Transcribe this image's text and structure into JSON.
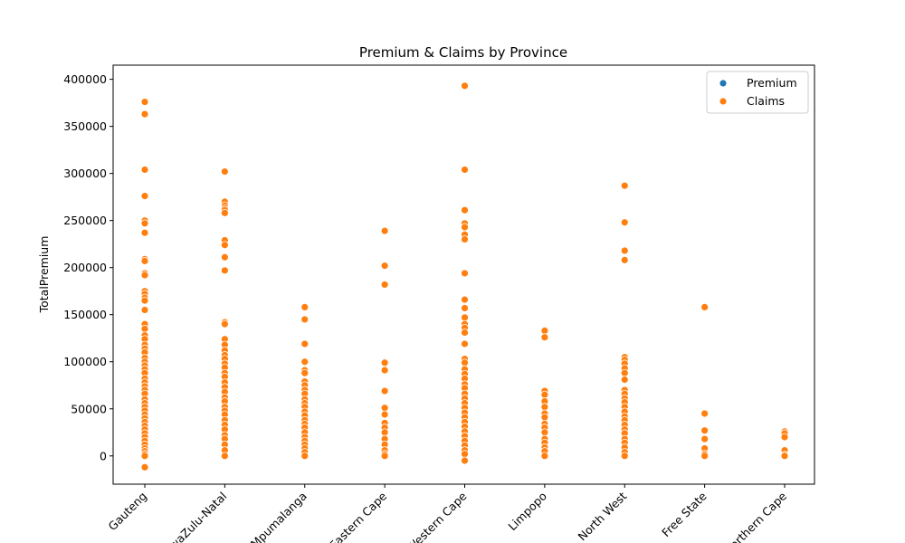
{
  "chart_data": {
    "type": "scatter",
    "title": "Premium & Claims by Province",
    "xlabel": "",
    "ylabel": "TotalPremium",
    "categories": [
      "Gauteng",
      "KwaZulu-Natal",
      "Mpumalanga",
      "Eastern Cape",
      "Western Cape",
      "Limpopo",
      "North West",
      "Free State",
      "Northern Cape"
    ],
    "ylim": [
      -30000,
      415000
    ],
    "yticks": [
      0,
      50000,
      100000,
      150000,
      200000,
      250000,
      300000,
      350000,
      400000
    ],
    "grid": false,
    "legend_position": "top-right",
    "series": [
      {
        "name": "Premium",
        "color": "#1f77b4",
        "points": [
          [
            "Gauteng",
            0
          ],
          [
            "Gauteng",
            500
          ],
          [
            "Gauteng",
            1200
          ],
          [
            "Gauteng",
            2500
          ],
          [
            "KwaZulu-Natal",
            0
          ],
          [
            "KwaZulu-Natal",
            800
          ],
          [
            "KwaZulu-Natal",
            1500
          ],
          [
            "Mpumalanga",
            0
          ],
          [
            "Mpumalanga",
            600
          ],
          [
            "Eastern Cape",
            0
          ],
          [
            "Eastern Cape",
            400
          ],
          [
            "Western Cape",
            0
          ],
          [
            "Western Cape",
            700
          ],
          [
            "Western Cape",
            1800
          ],
          [
            "Limpopo",
            0
          ],
          [
            "Limpopo",
            500
          ],
          [
            "North West",
            0
          ],
          [
            "North West",
            900
          ],
          [
            "Free State",
            0
          ],
          [
            "Free State",
            300
          ],
          [
            "Northern Cape",
            0
          ],
          [
            "Northern Cape",
            200
          ]
        ]
      },
      {
        "name": "Claims",
        "color": "#ff7f0e",
        "points": [
          [
            "Gauteng",
            376000
          ],
          [
            "Gauteng",
            363000
          ],
          [
            "Gauteng",
            304000
          ],
          [
            "Gauteng",
            276000
          ],
          [
            "Gauteng",
            250000
          ],
          [
            "Gauteng",
            247000
          ],
          [
            "Gauteng",
            237000
          ],
          [
            "Gauteng",
            209000
          ],
          [
            "Gauteng",
            207000
          ],
          [
            "Gauteng",
            194000
          ],
          [
            "Gauteng",
            192000
          ],
          [
            "Gauteng",
            175000
          ],
          [
            "Gauteng",
            172000
          ],
          [
            "Gauteng",
            168000
          ],
          [
            "Gauteng",
            165000
          ],
          [
            "Gauteng",
            155000
          ],
          [
            "Gauteng",
            140000
          ],
          [
            "Gauteng",
            135000
          ],
          [
            "Gauteng",
            128000
          ],
          [
            "Gauteng",
            124000
          ],
          [
            "Gauteng",
            118000
          ],
          [
            "Gauteng",
            114000
          ],
          [
            "Gauteng",
            110000
          ],
          [
            "Gauteng",
            104000
          ],
          [
            "Gauteng",
            100000
          ],
          [
            "Gauteng",
            96000
          ],
          [
            "Gauteng",
            92000
          ],
          [
            "Gauteng",
            88000
          ],
          [
            "Gauteng",
            82000
          ],
          [
            "Gauteng",
            78000
          ],
          [
            "Gauteng",
            74000
          ],
          [
            "Gauteng",
            70000
          ],
          [
            "Gauteng",
            66000
          ],
          [
            "Gauteng",
            60000
          ],
          [
            "Gauteng",
            56000
          ],
          [
            "Gauteng",
            52000
          ],
          [
            "Gauteng",
            48000
          ],
          [
            "Gauteng",
            44000
          ],
          [
            "Gauteng",
            40000
          ],
          [
            "Gauteng",
            36000
          ],
          [
            "Gauteng",
            32000
          ],
          [
            "Gauteng",
            28000
          ],
          [
            "Gauteng",
            24000
          ],
          [
            "Gauteng",
            20000
          ],
          [
            "Gauteng",
            16000
          ],
          [
            "Gauteng",
            12000
          ],
          [
            "Gauteng",
            8000
          ],
          [
            "Gauteng",
            5000
          ],
          [
            "Gauteng",
            2000
          ],
          [
            "Gauteng",
            0
          ],
          [
            "Gauteng",
            -12000
          ],
          [
            "KwaZulu-Natal",
            302000
          ],
          [
            "KwaZulu-Natal",
            270000
          ],
          [
            "KwaZulu-Natal",
            266000
          ],
          [
            "KwaZulu-Natal",
            263000
          ],
          [
            "KwaZulu-Natal",
            261000
          ],
          [
            "KwaZulu-Natal",
            258000
          ],
          [
            "KwaZulu-Natal",
            229000
          ],
          [
            "KwaZulu-Natal",
            224000
          ],
          [
            "KwaZulu-Natal",
            211000
          ],
          [
            "KwaZulu-Natal",
            197000
          ],
          [
            "KwaZulu-Natal",
            142000
          ],
          [
            "KwaZulu-Natal",
            140000
          ],
          [
            "KwaZulu-Natal",
            124000
          ],
          [
            "KwaZulu-Natal",
            118000
          ],
          [
            "KwaZulu-Natal",
            112000
          ],
          [
            "KwaZulu-Natal",
            107000
          ],
          [
            "KwaZulu-Natal",
            103000
          ],
          [
            "KwaZulu-Natal",
            98000
          ],
          [
            "KwaZulu-Natal",
            94000
          ],
          [
            "KwaZulu-Natal",
            88000
          ],
          [
            "KwaZulu-Natal",
            84000
          ],
          [
            "KwaZulu-Natal",
            78000
          ],
          [
            "KwaZulu-Natal",
            73000
          ],
          [
            "KwaZulu-Natal",
            68000
          ],
          [
            "KwaZulu-Natal",
            62000
          ],
          [
            "KwaZulu-Natal",
            58000
          ],
          [
            "KwaZulu-Natal",
            52000
          ],
          [
            "KwaZulu-Natal",
            48000
          ],
          [
            "KwaZulu-Natal",
            44000
          ],
          [
            "KwaZulu-Natal",
            38000
          ],
          [
            "KwaZulu-Natal",
            33000
          ],
          [
            "KwaZulu-Natal",
            28000
          ],
          [
            "KwaZulu-Natal",
            22000
          ],
          [
            "KwaZulu-Natal",
            18000
          ],
          [
            "KwaZulu-Natal",
            12000
          ],
          [
            "KwaZulu-Natal",
            6000
          ],
          [
            "KwaZulu-Natal",
            0
          ],
          [
            "Mpumalanga",
            158000
          ],
          [
            "Mpumalanga",
            145000
          ],
          [
            "Mpumalanga",
            119000
          ],
          [
            "Mpumalanga",
            100000
          ],
          [
            "Mpumalanga",
            91000
          ],
          [
            "Mpumalanga",
            88000
          ],
          [
            "Mpumalanga",
            79000
          ],
          [
            "Mpumalanga",
            75000
          ],
          [
            "Mpumalanga",
            70000
          ],
          [
            "Mpumalanga",
            66000
          ],
          [
            "Mpumalanga",
            60000
          ],
          [
            "Mpumalanga",
            56000
          ],
          [
            "Mpumalanga",
            52000
          ],
          [
            "Mpumalanga",
            47000
          ],
          [
            "Mpumalanga",
            43000
          ],
          [
            "Mpumalanga",
            38000
          ],
          [
            "Mpumalanga",
            34000
          ],
          [
            "Mpumalanga",
            30000
          ],
          [
            "Mpumalanga",
            25000
          ],
          [
            "Mpumalanga",
            20000
          ],
          [
            "Mpumalanga",
            16000
          ],
          [
            "Mpumalanga",
            12000
          ],
          [
            "Mpumalanga",
            8000
          ],
          [
            "Mpumalanga",
            4000
          ],
          [
            "Mpumalanga",
            0
          ],
          [
            "Eastern Cape",
            239000
          ],
          [
            "Eastern Cape",
            202000
          ],
          [
            "Eastern Cape",
            182000
          ],
          [
            "Eastern Cape",
            99000
          ],
          [
            "Eastern Cape",
            91000
          ],
          [
            "Eastern Cape",
            69000
          ],
          [
            "Eastern Cape",
            51000
          ],
          [
            "Eastern Cape",
            44000
          ],
          [
            "Eastern Cape",
            35000
          ],
          [
            "Eastern Cape",
            30000
          ],
          [
            "Eastern Cape",
            25000
          ],
          [
            "Eastern Cape",
            18000
          ],
          [
            "Eastern Cape",
            12000
          ],
          [
            "Eastern Cape",
            6000
          ],
          [
            "Eastern Cape",
            2000
          ],
          [
            "Eastern Cape",
            0
          ],
          [
            "Western Cape",
            393000
          ],
          [
            "Western Cape",
            304000
          ],
          [
            "Western Cape",
            261000
          ],
          [
            "Western Cape",
            247000
          ],
          [
            "Western Cape",
            243000
          ],
          [
            "Western Cape",
            235000
          ],
          [
            "Western Cape",
            230000
          ],
          [
            "Western Cape",
            194000
          ],
          [
            "Western Cape",
            166000
          ],
          [
            "Western Cape",
            157000
          ],
          [
            "Western Cape",
            147000
          ],
          [
            "Western Cape",
            140000
          ],
          [
            "Western Cape",
            136000
          ],
          [
            "Western Cape",
            131000
          ],
          [
            "Western Cape",
            119000
          ],
          [
            "Western Cape",
            103000
          ],
          [
            "Western Cape",
            99000
          ],
          [
            "Western Cape",
            92000
          ],
          [
            "Western Cape",
            87000
          ],
          [
            "Western Cape",
            82000
          ],
          [
            "Western Cape",
            76000
          ],
          [
            "Western Cape",
            72000
          ],
          [
            "Western Cape",
            66000
          ],
          [
            "Western Cape",
            61000
          ],
          [
            "Western Cape",
            56000
          ],
          [
            "Western Cape",
            51000
          ],
          [
            "Western Cape",
            46000
          ],
          [
            "Western Cape",
            41000
          ],
          [
            "Western Cape",
            36000
          ],
          [
            "Western Cape",
            31000
          ],
          [
            "Western Cape",
            26000
          ],
          [
            "Western Cape",
            21000
          ],
          [
            "Western Cape",
            16000
          ],
          [
            "Western Cape",
            11000
          ],
          [
            "Western Cape",
            6000
          ],
          [
            "Western Cape",
            2000
          ],
          [
            "Western Cape",
            -5000
          ],
          [
            "Limpopo",
            133000
          ],
          [
            "Limpopo",
            126000
          ],
          [
            "Limpopo",
            69000
          ],
          [
            "Limpopo",
            65000
          ],
          [
            "Limpopo",
            58000
          ],
          [
            "Limpopo",
            52000
          ],
          [
            "Limpopo",
            45000
          ],
          [
            "Limpopo",
            41000
          ],
          [
            "Limpopo",
            34000
          ],
          [
            "Limpopo",
            30000
          ],
          [
            "Limpopo",
            25000
          ],
          [
            "Limpopo",
            18000
          ],
          [
            "Limpopo",
            14000
          ],
          [
            "Limpopo",
            9000
          ],
          [
            "Limpopo",
            5000
          ],
          [
            "Limpopo",
            0
          ],
          [
            "North West",
            287000
          ],
          [
            "North West",
            248000
          ],
          [
            "North West",
            218000
          ],
          [
            "North West",
            208000
          ],
          [
            "North West",
            105000
          ],
          [
            "North West",
            102000
          ],
          [
            "North West",
            98000
          ],
          [
            "North West",
            93000
          ],
          [
            "North West",
            88000
          ],
          [
            "North West",
            81000
          ],
          [
            "North West",
            70000
          ],
          [
            "North West",
            66000
          ],
          [
            "North West",
            61000
          ],
          [
            "North West",
            57000
          ],
          [
            "North West",
            52000
          ],
          [
            "North West",
            47000
          ],
          [
            "North West",
            42000
          ],
          [
            "North West",
            38000
          ],
          [
            "North West",
            33000
          ],
          [
            "North West",
            28000
          ],
          [
            "North West",
            24000
          ],
          [
            "North West",
            18000
          ],
          [
            "North West",
            14000
          ],
          [
            "North West",
            9000
          ],
          [
            "North West",
            4000
          ],
          [
            "North West",
            0
          ],
          [
            "Free State",
            158000
          ],
          [
            "Free State",
            45000
          ],
          [
            "Free State",
            27000
          ],
          [
            "Free State",
            18000
          ],
          [
            "Free State",
            8000
          ],
          [
            "Free State",
            2000
          ],
          [
            "Free State",
            0
          ],
          [
            "Northern Cape",
            26000
          ],
          [
            "Northern Cape",
            24000
          ],
          [
            "Northern Cape",
            20000
          ],
          [
            "Northern Cape",
            6000
          ],
          [
            "Northern Cape",
            1000
          ],
          [
            "Northern Cape",
            0
          ]
        ]
      }
    ]
  }
}
